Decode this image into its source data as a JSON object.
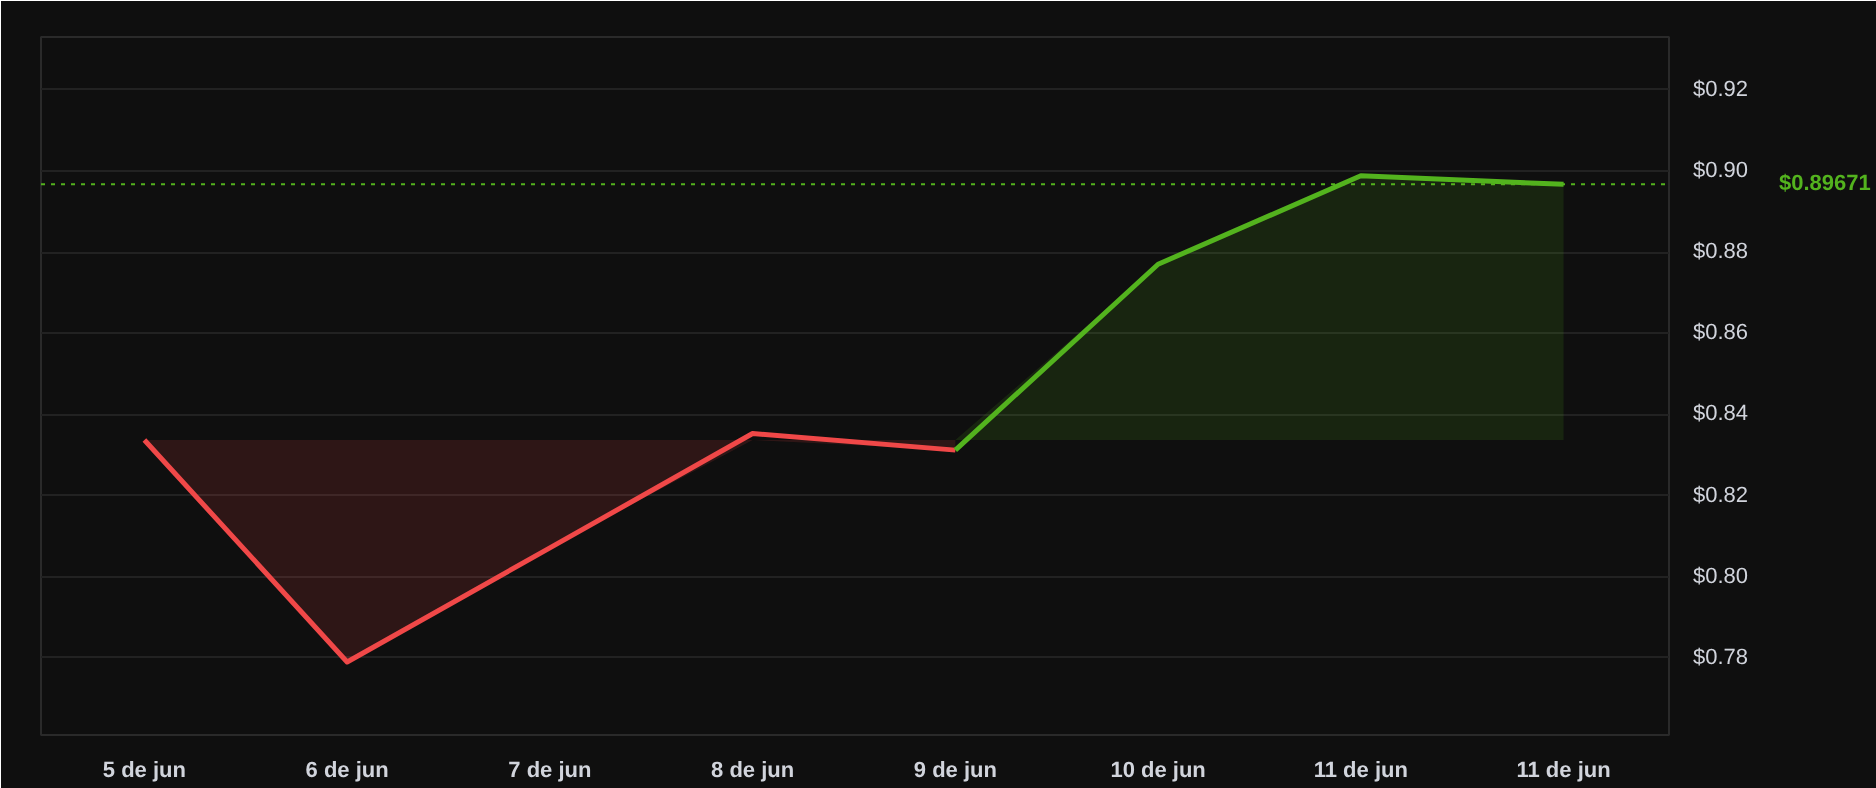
{
  "chart_data": {
    "type": "line",
    "categories": [
      "5 de jun",
      "6 de jun",
      "7 de jun",
      "8 de jun",
      "9 de jun",
      "10 de jun",
      "11 de jun",
      "11 de jun"
    ],
    "series": [
      {
        "color": "#f04848",
        "values": [
          0.8337,
          0.779,
          0.8071,
          0.8353,
          0.8312,
          null,
          null,
          null
        ],
        "lower": [
          0.8337,
          0.779,
          0.8071,
          0.8337,
          0.8312,
          null,
          null,
          null
        ],
        "upper": [
          0.8337,
          0.8337,
          0.8337,
          0.8337,
          0.8337,
          null,
          null,
          null
        ]
      },
      {
        "color": "#53b31e",
        "values": [
          null,
          null,
          null,
          null,
          0.8312,
          0.877,
          0.8988,
          0.8967
        ],
        "lower": [
          null,
          null,
          null,
          null,
          0.8337,
          0.8337,
          0.8337,
          0.8337
        ],
        "upper": [
          null,
          null,
          null,
          null,
          0.8337,
          0.877,
          0.8988,
          0.8967
        ]
      }
    ],
    "ylim": [
      0.761,
      0.933
    ],
    "yticks": [
      {
        "value": 0.78,
        "label": "$0.78"
      },
      {
        "value": 0.8,
        "label": "$0.80"
      },
      {
        "value": 0.82,
        "label": "$0.82"
      },
      {
        "value": 0.84,
        "label": "$0.84"
      },
      {
        "value": 0.86,
        "label": "$0.86"
      },
      {
        "value": 0.88,
        "label": "$0.88"
      },
      {
        "value": 0.9,
        "label": "$0.90"
      },
      {
        "value": 0.92,
        "label": "$0.92"
      }
    ],
    "ref_lines": [
      {
        "axis": "y",
        "value": 0.89671,
        "label": "$0.89671",
        "color": "#53b31e",
        "line_style": "dotted"
      }
    ],
    "grid": "y"
  }
}
